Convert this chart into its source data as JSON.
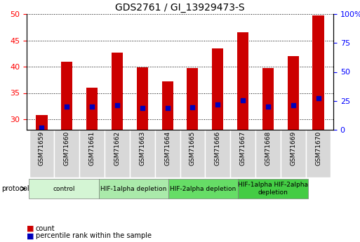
{
  "title": "GDS2761 / GI_13929473-S",
  "samples": [
    "GSM71659",
    "GSM71660",
    "GSM71661",
    "GSM71662",
    "GSM71663",
    "GSM71664",
    "GSM71665",
    "GSM71666",
    "GSM71667",
    "GSM71668",
    "GSM71669",
    "GSM71670"
  ],
  "counts": [
    30.8,
    41.0,
    36.0,
    42.7,
    39.9,
    37.2,
    39.8,
    43.5,
    46.5,
    39.8,
    42.0,
    49.7
  ],
  "percentile_ranks": [
    2.0,
    20.0,
    20.0,
    21.5,
    19.0,
    19.0,
    19.5,
    22.0,
    25.5,
    20.0,
    21.0,
    27.0
  ],
  "bar_color": "#cc0000",
  "dot_color": "#0000bb",
  "ylim_left": [
    28,
    50
  ],
  "ylim_right": [
    0,
    100
  ],
  "yticks_left": [
    30,
    35,
    40,
    45,
    50
  ],
  "yticks_right": [
    0,
    25,
    50,
    75,
    100
  ],
  "yticklabels_right": [
    "0",
    "25",
    "50",
    "75",
    "100%"
  ],
  "protocol_groups": [
    {
      "label": "control",
      "start": 0,
      "end": 2,
      "color": "#d4f5d4"
    },
    {
      "label": "HIF-1alpha depletion",
      "start": 3,
      "end": 5,
      "color": "#aaeaaa"
    },
    {
      "label": "HIF-2alpha depletion",
      "start": 6,
      "end": 8,
      "color": "#66dd66"
    },
    {
      "label": "HIF-1alpha HIF-2alpha\ndepletion",
      "start": 9,
      "end": 11,
      "color": "#44cc44"
    }
  ],
  "legend_items": [
    {
      "label": "count",
      "color": "#cc0000"
    },
    {
      "label": "percentile rank within the sample",
      "color": "#0000bb"
    }
  ],
  "bar_width": 0.45,
  "bar_bottom": 28,
  "dot_size": 18,
  "xtick_bg": "#d8d8d8",
  "plot_bg": "#ffffff",
  "grid_color": "#000000"
}
